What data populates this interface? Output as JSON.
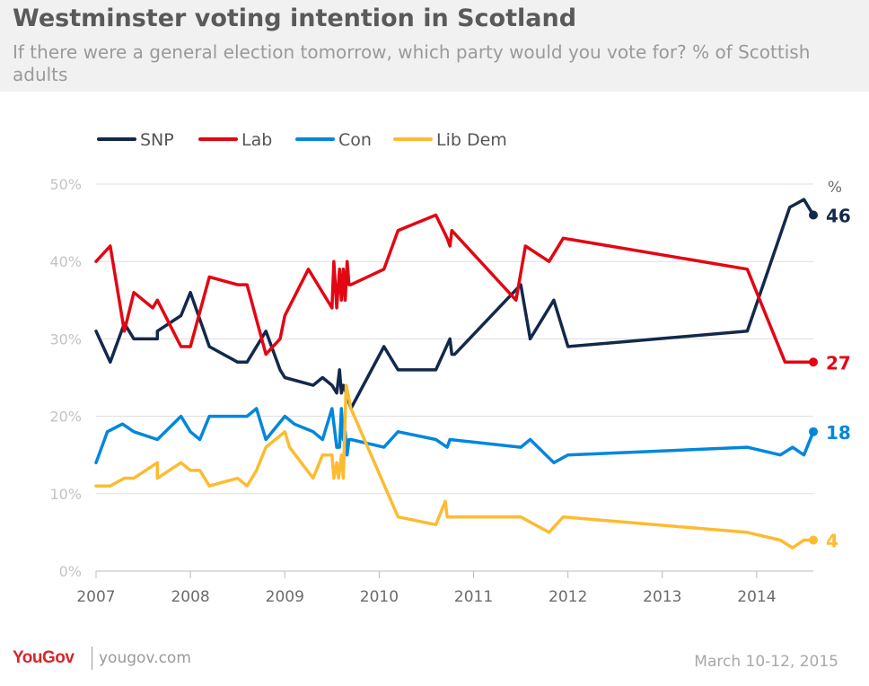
{
  "header": {
    "title": "Westminster voting intention in Scotland",
    "subtitle": "If there were a general election tomorrow, which party would you vote for? % of Scottish adults"
  },
  "footer": {
    "brand": "YouGov",
    "site": "yougov.com",
    "date": "March 10-12, 2015"
  },
  "colors": {
    "SNP": "#13294b",
    "Lab": "#e30613",
    "Con": "#0087dc",
    "Lib Dem": "#fdbb30",
    "grid": "#dddddd",
    "axis": "#bbbbbb"
  },
  "chart_data": {
    "type": "line",
    "y_unit_label": "%",
    "ylim": [
      0,
      50
    ],
    "y_ticks": [
      "0%",
      "10%",
      "20%",
      "30%",
      "40%",
      "50%"
    ],
    "x_ticks": [
      "2007",
      "2008",
      "2009",
      "2010",
      "2011",
      "2012",
      "2013",
      "2014"
    ],
    "xlim": [
      2007.0,
      2014.6
    ],
    "grid": true,
    "legend": "top-left",
    "series": [
      {
        "name": "SNP",
        "end_label": "46",
        "x": [
          2007.0,
          2007.15,
          2007.3,
          2007.4,
          2007.65,
          2007.65,
          2007.9,
          2008.0,
          2008.2,
          2008.5,
          2008.6,
          2008.75,
          2008.8,
          2008.95,
          2009.0,
          2009.3,
          2009.4,
          2009.5,
          2009.55,
          2009.58,
          2009.6,
          2009.62,
          2009.65,
          2009.7,
          2010.05,
          2010.2,
          2010.6,
          2010.75,
          2010.77,
          2010.8,
          2011.5,
          2011.6,
          2011.85,
          2012.0,
          2013.9,
          2014.35,
          2014.5,
          2014.6
        ],
        "values": [
          31,
          27,
          32,
          30,
          30,
          31,
          33,
          36,
          29,
          27,
          27,
          30,
          31,
          26,
          25,
          24,
          25,
          24,
          23,
          26,
          23,
          24,
          23,
          21,
          29,
          26,
          26,
          30,
          28,
          28,
          37,
          30,
          35,
          29,
          31,
          47,
          48,
          46
        ]
      },
      {
        "name": "Lab",
        "end_label": "27",
        "x": [
          2007.0,
          2007.15,
          2007.3,
          2007.4,
          2007.6,
          2007.65,
          2007.9,
          2008.0,
          2008.2,
          2008.5,
          2008.6,
          2008.8,
          2008.95,
          2009.0,
          2009.25,
          2009.4,
          2009.5,
          2009.52,
          2009.55,
          2009.58,
          2009.6,
          2009.62,
          2009.64,
          2009.66,
          2009.68,
          2009.7,
          2010.05,
          2010.2,
          2010.6,
          2010.72,
          2010.75,
          2010.77,
          2011.45,
          2011.55,
          2011.8,
          2011.95,
          2013.9,
          2014.3,
          2014.6
        ],
        "values": [
          40,
          42,
          31,
          36,
          34,
          35,
          29,
          29,
          38,
          37,
          37,
          28,
          30,
          33,
          39,
          36,
          34,
          40,
          34,
          39,
          35,
          39,
          35,
          40,
          37,
          37,
          39,
          44,
          46,
          43,
          42,
          44,
          35,
          42,
          40,
          43,
          39,
          27,
          27
        ]
      },
      {
        "name": "Con",
        "end_label": "18",
        "x": [
          2007.0,
          2007.12,
          2007.28,
          2007.4,
          2007.65,
          2007.9,
          2008.0,
          2008.1,
          2008.2,
          2008.5,
          2008.6,
          2008.7,
          2008.8,
          2009.0,
          2009.1,
          2009.3,
          2009.4,
          2009.5,
          2009.55,
          2009.58,
          2009.6,
          2009.62,
          2009.64,
          2009.66,
          2009.68,
          2009.7,
          2010.05,
          2010.2,
          2010.6,
          2010.72,
          2010.75,
          2011.5,
          2011.6,
          2011.85,
          2012.0,
          2013.9,
          2014.25,
          2014.38,
          2014.5,
          2014.6
        ],
        "values": [
          14,
          18,
          19,
          18,
          17,
          20,
          18,
          17,
          20,
          20,
          20,
          21,
          17,
          20,
          19,
          18,
          17,
          21,
          16,
          16,
          21,
          17,
          18,
          15,
          17,
          17,
          16,
          18,
          17,
          16,
          17,
          16,
          17,
          14,
          15,
          16,
          15,
          16,
          15,
          18
        ]
      },
      {
        "name": "Lib Dem",
        "end_label": "4",
        "x": [
          2007.0,
          2007.15,
          2007.3,
          2007.4,
          2007.65,
          2007.65,
          2007.9,
          2008.0,
          2008.1,
          2008.2,
          2008.5,
          2008.6,
          2008.7,
          2008.8,
          2009.0,
          2009.05,
          2009.3,
          2009.4,
          2009.5,
          2009.52,
          2009.55,
          2009.57,
          2009.6,
          2009.62,
          2009.65,
          2009.7,
          2010.2,
          2010.6,
          2010.7,
          2010.72,
          2011.5,
          2011.8,
          2011.95,
          2013.9,
          2014.25,
          2014.38,
          2014.5,
          2014.6
        ],
        "values": [
          11,
          11,
          12,
          12,
          14,
          12,
          14,
          13,
          13,
          11,
          12,
          11,
          13,
          16,
          18,
          16,
          12,
          15,
          15,
          12,
          14,
          12,
          15,
          12,
          24,
          21,
          7,
          6,
          9,
          7,
          7,
          5,
          7,
          5,
          4,
          3,
          4,
          4
        ]
      }
    ]
  }
}
